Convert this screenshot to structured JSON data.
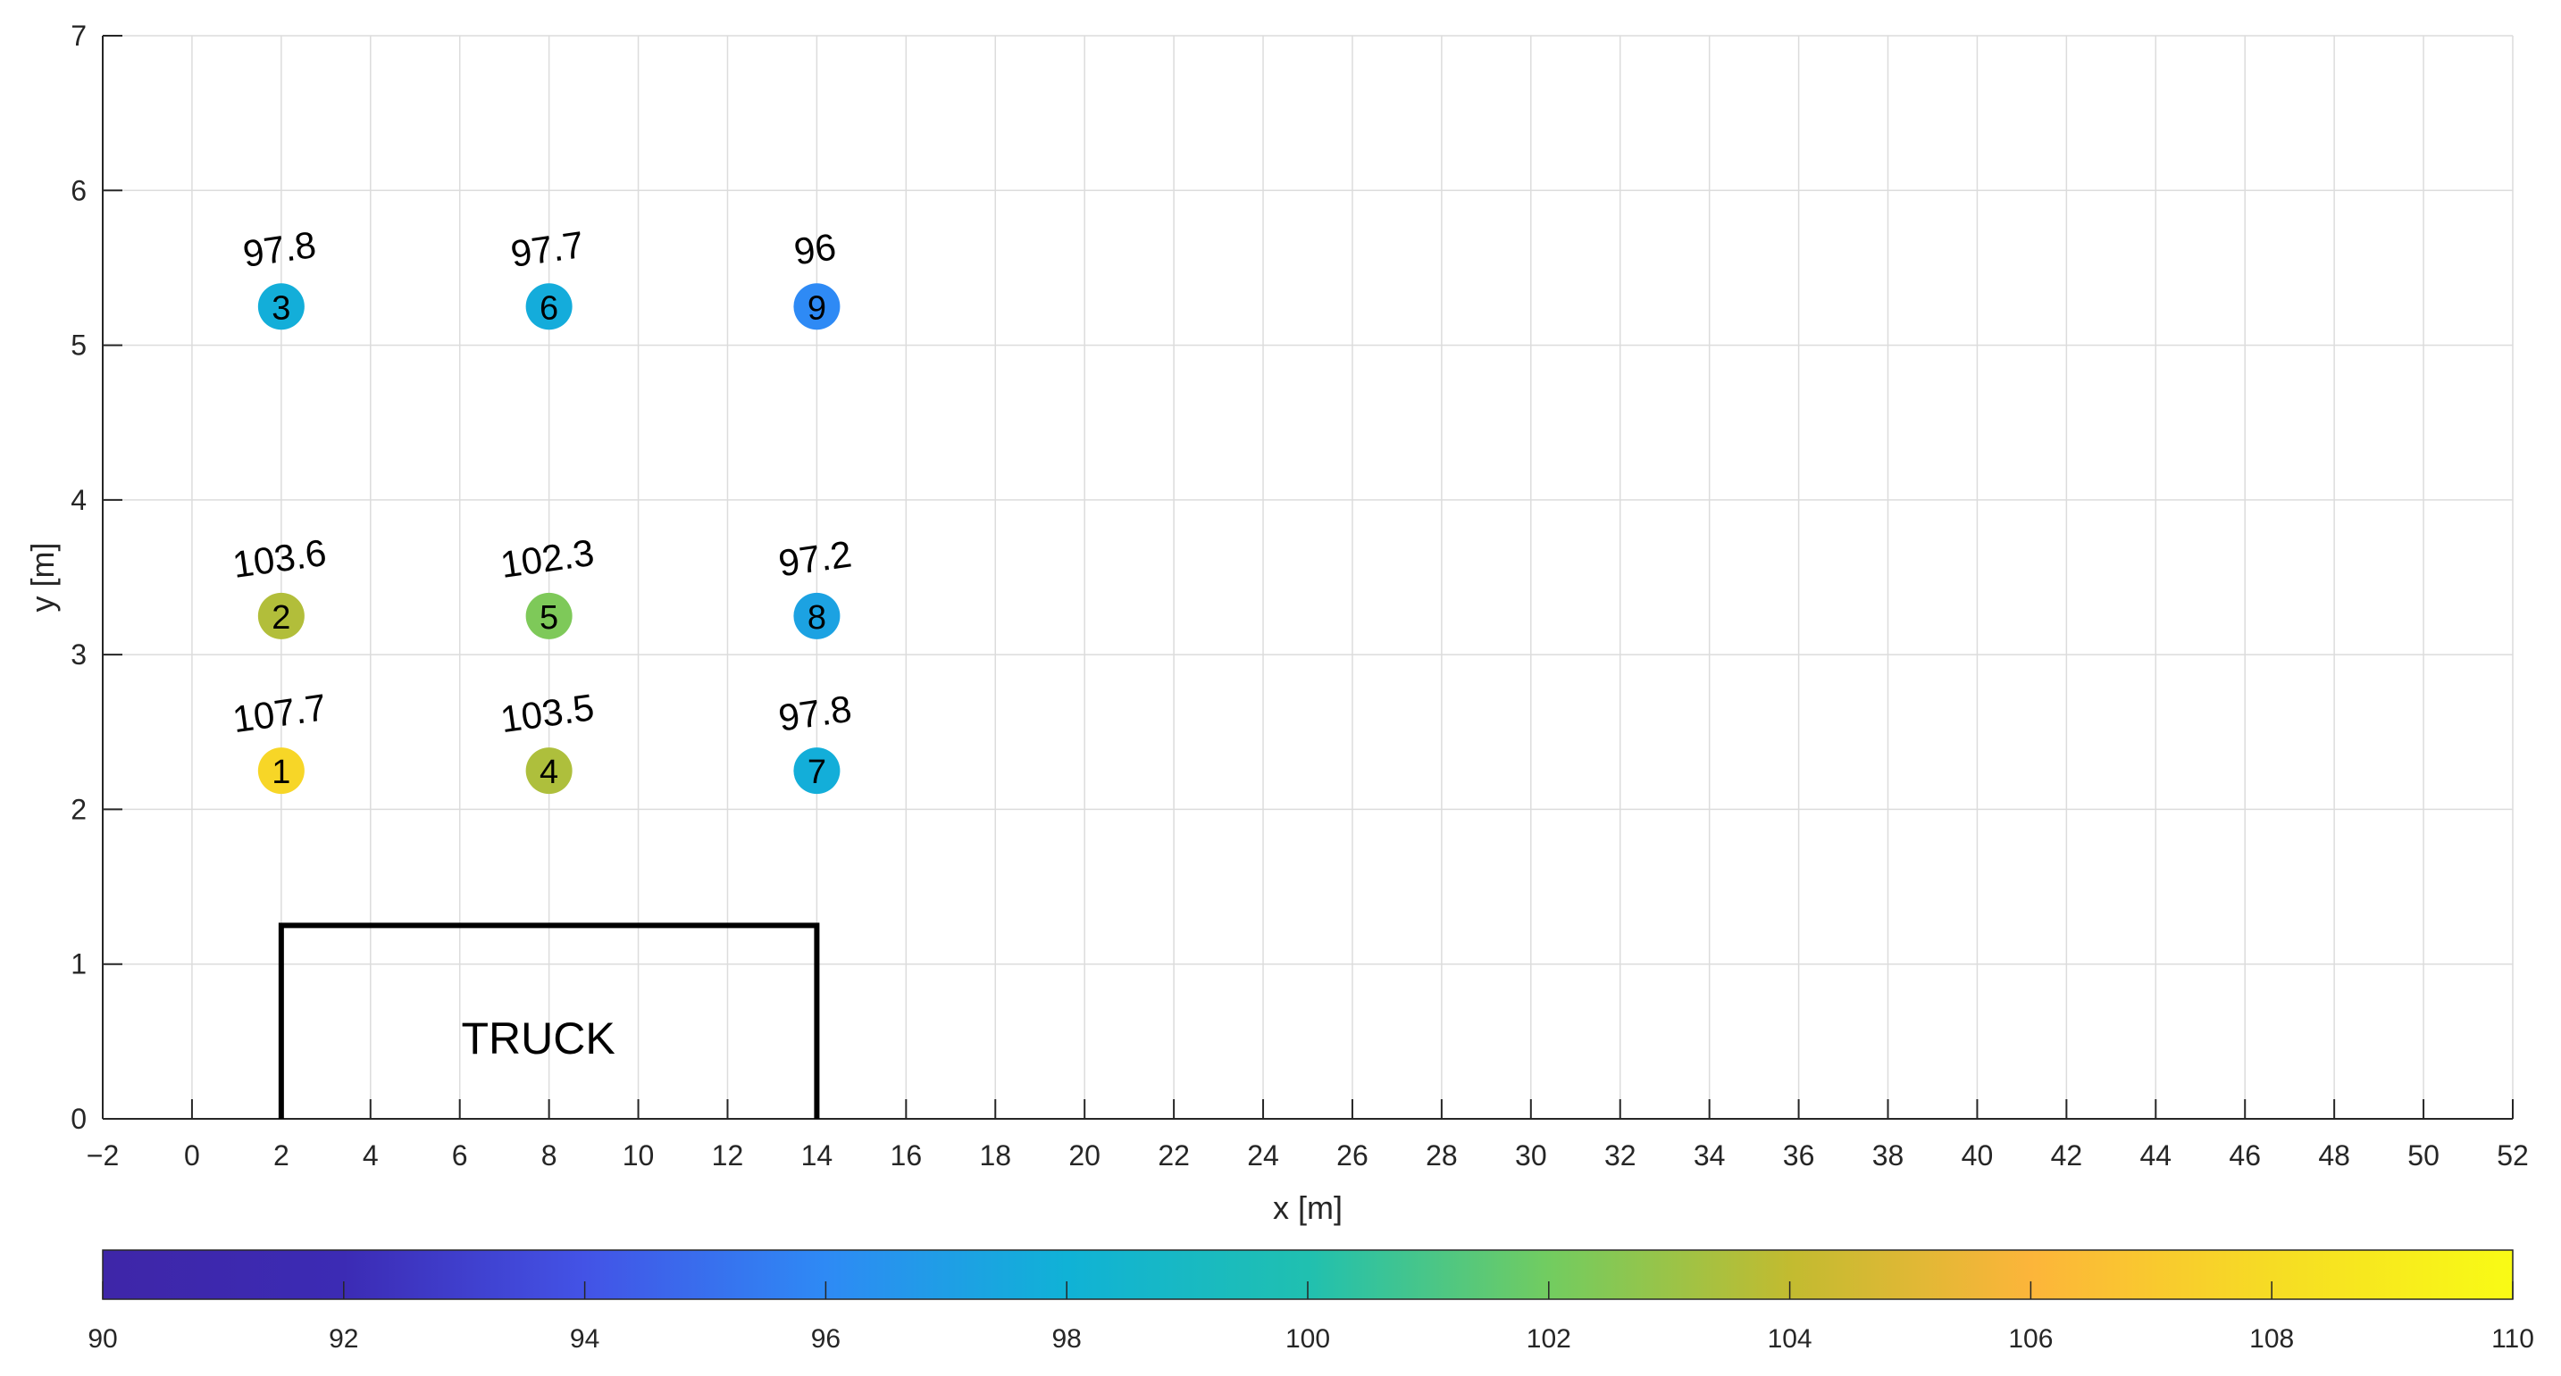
{
  "chart_data": {
    "type": "scatter",
    "xlabel": "x [m]",
    "ylabel": "y [m]",
    "xlim": [
      -2,
      52
    ],
    "ylim": [
      0,
      7
    ],
    "xticks": [
      -2,
      0,
      2,
      4,
      6,
      8,
      10,
      12,
      14,
      16,
      18,
      20,
      22,
      24,
      26,
      28,
      30,
      32,
      34,
      36,
      38,
      40,
      42,
      44,
      46,
      48,
      50,
      52
    ],
    "xtick_labels": [
      "−2",
      "0",
      "2",
      "4",
      "6",
      "8",
      "10",
      "12",
      "14",
      "16",
      "18",
      "20",
      "22",
      "24",
      "26",
      "28",
      "30",
      "32",
      "34",
      "36",
      "38",
      "40",
      "42",
      "44",
      "46",
      "48",
      "50",
      "52"
    ],
    "yticks": [
      0,
      1,
      2,
      3,
      4,
      5,
      6,
      7
    ],
    "ytick_labels": [
      "0",
      "1",
      "2",
      "3",
      "4",
      "5",
      "6",
      "7"
    ],
    "grid": true,
    "points": [
      {
        "id": "1",
        "x": 2,
        "y": 2.25,
        "value": 107.7,
        "label": "107.7"
      },
      {
        "id": "2",
        "x": 2,
        "y": 3.25,
        "value": 103.6,
        "label": "103.6"
      },
      {
        "id": "3",
        "x": 2,
        "y": 5.25,
        "value": 97.8,
        "label": "97.8"
      },
      {
        "id": "4",
        "x": 8,
        "y": 2.25,
        "value": 103.5,
        "label": "103.5"
      },
      {
        "id": "5",
        "x": 8,
        "y": 3.25,
        "value": 102.3,
        "label": "102.3"
      },
      {
        "id": "6",
        "x": 8,
        "y": 5.25,
        "value": 97.7,
        "label": "97.7"
      },
      {
        "id": "7",
        "x": 14,
        "y": 2.25,
        "value": 97.8,
        "label": "97.8"
      },
      {
        "id": "8",
        "x": 14,
        "y": 3.25,
        "value": 97.2,
        "label": "97.2"
      },
      {
        "id": "9",
        "x": 14,
        "y": 5.25,
        "value": 96,
        "label": "96"
      }
    ],
    "truck_outline": {
      "label": "TRUCK",
      "x": [
        2,
        2,
        14,
        14
      ],
      "y": [
        0,
        1.25,
        1.25,
        0
      ]
    },
    "colorbar": {
      "location": "bottom",
      "range": [
        90,
        110
      ],
      "ticks": [
        90,
        92,
        94,
        96,
        98,
        100,
        102,
        104,
        106,
        108,
        110
      ],
      "tick_labels": [
        "90",
        "92",
        "94",
        "96",
        "98",
        "100",
        "102",
        "104",
        "106",
        "108",
        "110"
      ],
      "colormap": "parula",
      "colors": [
        "#3e26a8",
        "#3c2bb4",
        "#4353e6",
        "#2e8af5",
        "#10b2d6",
        "#20c0b0",
        "#72cc60",
        "#c2bb30",
        "#fcb53a",
        "#f6dc24",
        "#f9fb15"
      ]
    }
  }
}
